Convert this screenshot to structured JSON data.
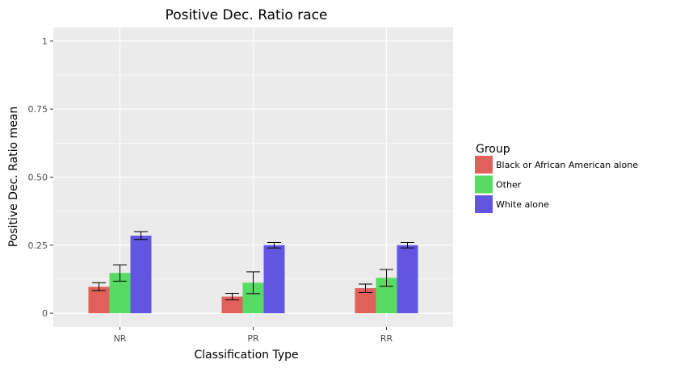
{
  "chart_data": {
    "type": "bar",
    "title": "Positive Dec. Ratio race",
    "xlabel": "Classification Type",
    "ylabel": "Positive Dec. Ratio mean",
    "categories": [
      "NR",
      "PR",
      "RR"
    ],
    "ylim": [
      -0.05,
      1.05
    ],
    "yticks": [
      0,
      0.25,
      0.5,
      0.75,
      1
    ],
    "ytick_labels": [
      "0",
      "0.25",
      "0.50",
      "0.75",
      "1"
    ],
    "grid": true,
    "legend": {
      "title": "Group",
      "position": "right"
    },
    "series": [
      {
        "name": "Black or African American alone",
        "color": "#E0605A",
        "values": [
          0.097,
          0.061,
          0.092
        ],
        "error_low": [
          0.083,
          0.049,
          0.076
        ],
        "error_high": [
          0.112,
          0.073,
          0.107
        ]
      },
      {
        "name": "Other",
        "color": "#58DB62",
        "values": [
          0.148,
          0.112,
          0.13
        ],
        "error_low": [
          0.118,
          0.072,
          0.099
        ],
        "error_high": [
          0.178,
          0.152,
          0.161
        ]
      },
      {
        "name": "White alone",
        "color": "#6156E0",
        "values": [
          0.285,
          0.25,
          0.25
        ],
        "error_low": [
          0.271,
          0.24,
          0.24
        ],
        "error_high": [
          0.3,
          0.26,
          0.26
        ]
      }
    ]
  }
}
